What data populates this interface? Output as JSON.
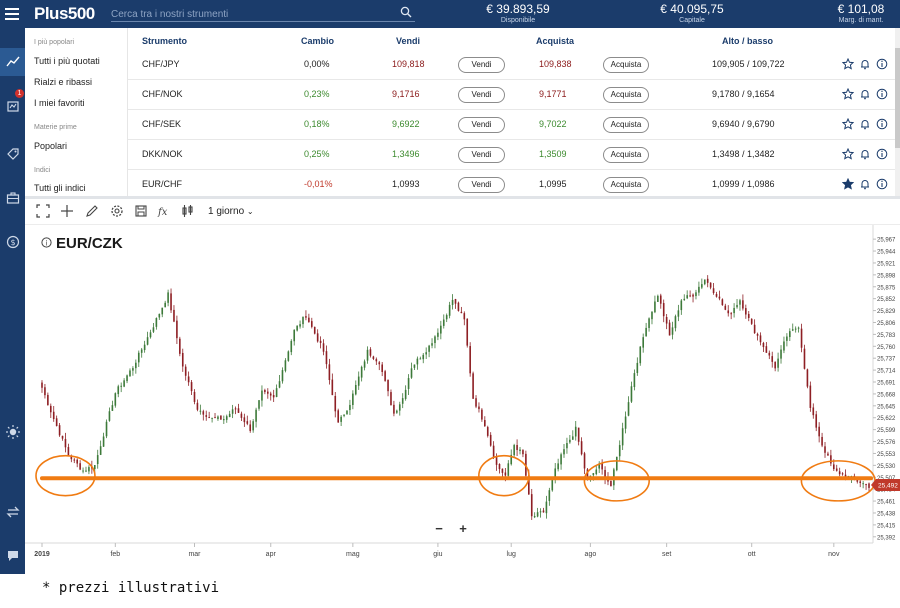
{
  "header": {
    "logo": "Plus500",
    "search_placeholder": "Cerca tra i nostri strumenti",
    "stats": [
      {
        "value": "€ 39.893,59",
        "label": "Disponibile"
      },
      {
        "value": "€ 40.095,75",
        "label": "Capitale"
      },
      {
        "value": "€ 101,08",
        "label": "Marg. di mant."
      }
    ]
  },
  "leftnav": {
    "icons": [
      "line-chart-icon",
      "positions-icon",
      "tag-icon",
      "briefcase-icon",
      "dollar-icon",
      "sun-icon",
      "swap-icon",
      "chat-icon"
    ],
    "badge": "1"
  },
  "categories": {
    "groups": [
      {
        "sub": "I più popolari",
        "items": [
          "Tutti i più quotati",
          "Rialzi e ribassi",
          "I miei favoriti"
        ]
      },
      {
        "sub": "Materie prime",
        "items": [
          "Popolari"
        ]
      },
      {
        "sub": "Indici",
        "items": [
          "Tutti gli indici"
        ]
      }
    ]
  },
  "table": {
    "columns": {
      "instrument": "Strumento",
      "change": "Cambio",
      "sell": "Vendi",
      "buy": "Acquista",
      "highlow": "Alto / basso"
    },
    "sell_label": "Vendi",
    "buy_label": "Acquista",
    "rows": [
      {
        "name": "CHF/JPY",
        "change": "0,00%",
        "sell": "109,818",
        "buy": "109,838",
        "highlow": "109,905 / 109,722",
        "change_color": "#222222",
        "price_color": "#8b1a1a",
        "favorite": false
      },
      {
        "name": "CHF/NOK",
        "change": "0,23%",
        "sell": "9,1716",
        "buy": "9,1771",
        "highlow": "9,1780 / 9,1654",
        "change_color": "#3c8a2e",
        "price_color": "#8b1a1a",
        "favorite": false
      },
      {
        "name": "CHF/SEK",
        "change": "0,18%",
        "sell": "9,6922",
        "buy": "9,7022",
        "highlow": "9,6940 / 9,6790",
        "change_color": "#3c8a2e",
        "price_color": "#3c8a2e",
        "favorite": false
      },
      {
        "name": "DKK/NOK",
        "change": "0,25%",
        "sell": "1,3496",
        "buy": "1,3509",
        "highlow": "1,3498 / 1,3482",
        "change_color": "#3c8a2e",
        "price_color": "#3c8a2e",
        "favorite": false
      },
      {
        "name": "EUR/CHF",
        "change": "-0,01%",
        "sell": "1,0993",
        "buy": "1,0995",
        "highlow": "1,0999 / 1,0986",
        "change_color": "#c0392b",
        "price_color": "#222222",
        "favorite": true
      }
    ]
  },
  "toolbar": {
    "timeframe": "1 giorno"
  },
  "chart_data": {
    "type": "candlestick",
    "title": "EUR/CZK",
    "xlabel": "",
    "ylabel": "",
    "x_ticks": [
      "2019",
      "feb",
      "mar",
      "apr",
      "mag",
      "giu",
      "lug",
      "ago",
      "set",
      "ott",
      "nov"
    ],
    "y_ticks": [
      "25,967",
      "25,944",
      "25,921",
      "25,898",
      "25,875",
      "25,852",
      "25,829",
      "25,806",
      "25,783",
      "25,760",
      "25,737",
      "25,714",
      "25,691",
      "25,668",
      "25,645",
      "25,622",
      "25,599",
      "25,576",
      "25,553",
      "25,530",
      "25,507",
      "25,484",
      "25,461",
      "25,438",
      "25,415",
      "25,392"
    ],
    "ylim": [
      25.38,
      25.975
    ],
    "current_price": "25,492",
    "support_level": 25.505,
    "close_path": [
      [
        0,
        25.68
      ],
      [
        4,
        25.62
      ],
      [
        9,
        25.55
      ],
      [
        14,
        25.52
      ],
      [
        18,
        25.53
      ],
      [
        25,
        25.67
      ],
      [
        31,
        25.72
      ],
      [
        38,
        25.8
      ],
      [
        43,
        25.86
      ],
      [
        48,
        25.72
      ],
      [
        53,
        25.64
      ],
      [
        58,
        25.62
      ],
      [
        62,
        25.62
      ],
      [
        66,
        25.64
      ],
      [
        71,
        25.6
      ],
      [
        75,
        25.67
      ],
      [
        79,
        25.66
      ],
      [
        86,
        25.79
      ],
      [
        90,
        25.82
      ],
      [
        96,
        25.75
      ],
      [
        101,
        25.61
      ],
      [
        105,
        25.65
      ],
      [
        111,
        25.75
      ],
      [
        115,
        25.73
      ],
      [
        120,
        25.63
      ],
      [
        123,
        25.66
      ],
      [
        126,
        25.72
      ],
      [
        132,
        25.76
      ],
      [
        136,
        25.8
      ],
      [
        140,
        25.85
      ],
      [
        144,
        25.81
      ],
      [
        147,
        25.66
      ],
      [
        151,
        25.61
      ],
      [
        155,
        25.53
      ],
      [
        158,
        25.51
      ],
      [
        161,
        25.57
      ],
      [
        164,
        25.55
      ],
      [
        167,
        25.43
      ],
      [
        171,
        25.44
      ],
      [
        175,
        25.52
      ],
      [
        178,
        25.56
      ],
      [
        182,
        25.6
      ],
      [
        186,
        25.5
      ],
      [
        190,
        25.53
      ],
      [
        194,
        25.49
      ],
      [
        198,
        25.6
      ],
      [
        202,
        25.71
      ],
      [
        206,
        25.8
      ],
      [
        210,
        25.86
      ],
      [
        214,
        25.78
      ],
      [
        218,
        25.85
      ],
      [
        222,
        25.86
      ],
      [
        226,
        25.89
      ],
      [
        230,
        25.86
      ],
      [
        234,
        25.82
      ],
      [
        238,
        25.85
      ],
      [
        242,
        25.8
      ],
      [
        246,
        25.76
      ],
      [
        250,
        25.72
      ],
      [
        254,
        25.78
      ],
      [
        258,
        25.8
      ],
      [
        262,
        25.64
      ],
      [
        266,
        25.57
      ],
      [
        270,
        25.52
      ],
      [
        274,
        25.51
      ],
      [
        278,
        25.5
      ],
      [
        282,
        25.49
      ]
    ],
    "volatility": 0.012,
    "annotations": [
      {
        "type": "ellipse",
        "start": 0,
        "end": 16,
        "y": 25.51
      },
      {
        "type": "ellipse",
        "start": 151,
        "end": 164,
        "y": 25.51
      },
      {
        "type": "ellipse",
        "start": 187,
        "end": 205,
        "y": 25.5
      },
      {
        "type": "ellipse",
        "start": 261,
        "end": 282,
        "y": 25.5
      }
    ],
    "up_color": "#3d7a3a",
    "down_color": "#8e1f24",
    "annotation_color": "#f07b12"
  },
  "footnote": "* prezzi illustrativi"
}
